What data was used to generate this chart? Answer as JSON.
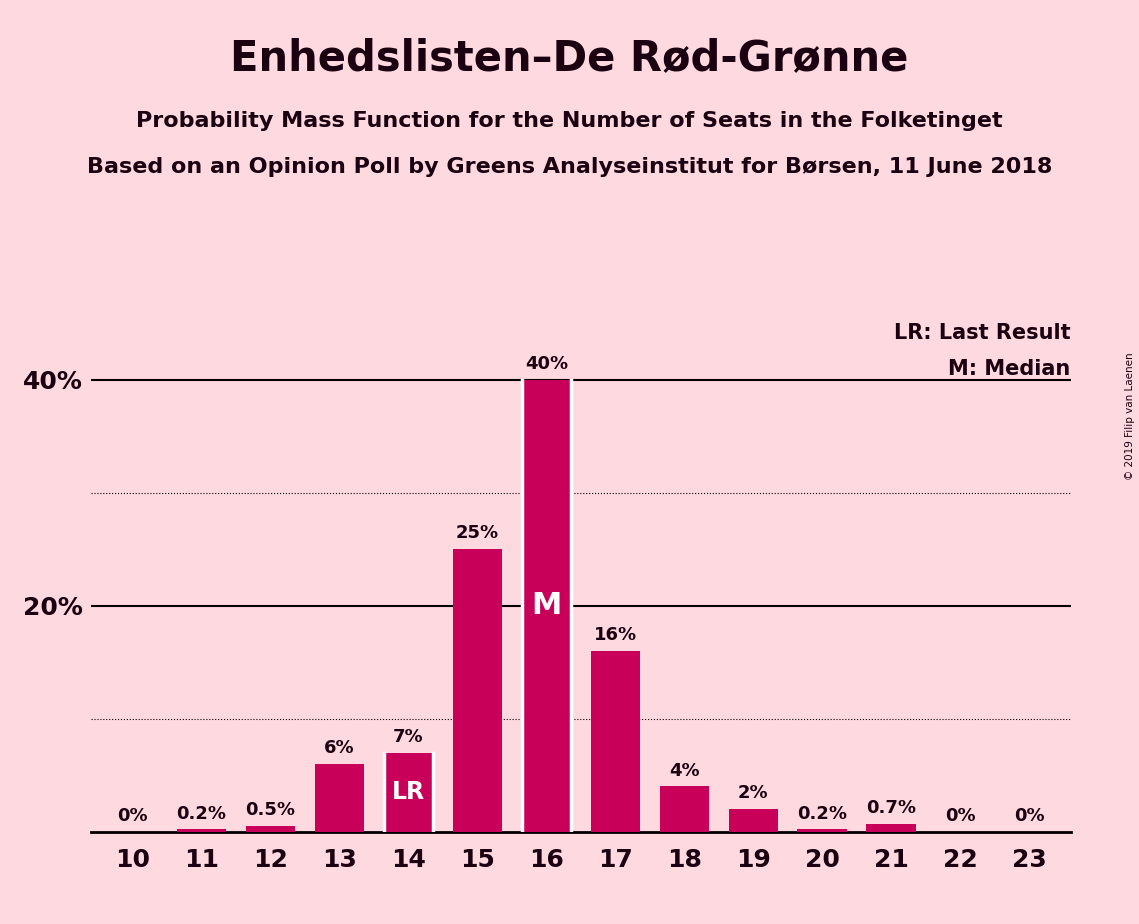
{
  "title": "Enhedslisten–De Rød-Grønne",
  "subtitle1": "Probability Mass Function for the Number of Seats in the Folketinget",
  "subtitle2": "Based on an Opinion Poll by Greens Analyseinstitut for Børsen, 11 June 2018",
  "copyright": "© 2019 Filip van Laenen",
  "seats": [
    10,
    11,
    12,
    13,
    14,
    15,
    16,
    17,
    18,
    19,
    20,
    21,
    22,
    23
  ],
  "probabilities": [
    0.0,
    0.2,
    0.5,
    6.0,
    7.0,
    25.0,
    40.0,
    16.0,
    4.0,
    2.0,
    0.2,
    0.7,
    0.0,
    0.0
  ],
  "bar_color": "#C8005A",
  "bg_color": "#FFD9E0",
  "label_color_outside": "#1a0010",
  "label_color_inside": "#ffffff",
  "lr_seat": 14,
  "median_seat": 16,
  "ylim": [
    0,
    45
  ],
  "legend_lr": "LR: Last Result",
  "legend_m": "M: Median"
}
